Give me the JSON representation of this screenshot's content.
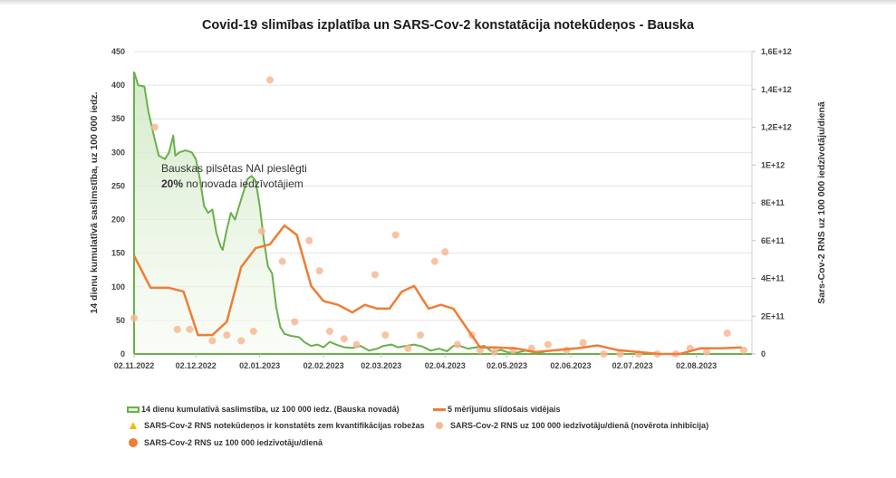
{
  "chart_data": {
    "type": "line",
    "title": "Covid-19 slimības izplatība un SARS-Cov-2 konstatācija notekūdeņos - Bauska",
    "ylabel": "14 dienu kumulatīvā saslimstība, uz 100 000 iedz.",
    "ylabel_right": "Sars-Cov-2 RNS uz 100 000 iedzīvotāju/dienā",
    "xlabel": "",
    "x_unit": "days since 02.11.2022",
    "xlim": [
      0,
      300
    ],
    "ylim": [
      0,
      450
    ],
    "ylim_right": [
      0,
      1600000000000.0
    ],
    "grid": true,
    "x_ticks": [
      {
        "day": 0,
        "label": "02.11.2022"
      },
      {
        "day": 30,
        "label": "02.12.2022"
      },
      {
        "day": 61,
        "label": "02.01.2023"
      },
      {
        "day": 92,
        "label": "02.02.2023"
      },
      {
        "day": 120,
        "label": "02.03.2023"
      },
      {
        "day": 151,
        "label": "02.04.2023"
      },
      {
        "day": 181,
        "label": "02.05.2023"
      },
      {
        "day": 212,
        "label": "02.06.2023"
      },
      {
        "day": 242,
        "label": "02.07.2023"
      },
      {
        "day": 273,
        "label": "02.08.2023"
      }
    ],
    "y_ticks_left": [
      "0",
      "50",
      "100",
      "150",
      "200",
      "250",
      "300",
      "350",
      "400",
      "450"
    ],
    "y_ticks_right": [
      "0",
      "2E+11",
      "4E+11",
      "6E+11",
      "8E+11",
      "1E+12",
      "1,2E+12",
      "1,4E+12",
      "1,6E+12"
    ],
    "annotation": {
      "line1": "Bauskas pilsētas NAI pieslēgti",
      "bold": "20%",
      "line2_rest": " no novada iedzīvotājiem"
    },
    "series": [
      {
        "name": "14 dienu kumulatīvā saslimstība, uz 100 000 iedz. (Bauska novadā)",
        "axis": "left",
        "kind": "area",
        "color": "#6ab04c",
        "points": [
          [
            0,
            420
          ],
          [
            2,
            400
          ],
          [
            5,
            398
          ],
          [
            7,
            360
          ],
          [
            10,
            320
          ],
          [
            12,
            295
          ],
          [
            15,
            290
          ],
          [
            17,
            300
          ],
          [
            19,
            325
          ],
          [
            20,
            295
          ],
          [
            22,
            300
          ],
          [
            25,
            303
          ],
          [
            28,
            300
          ],
          [
            30,
            290
          ],
          [
            32,
            260
          ],
          [
            34,
            220
          ],
          [
            36,
            210
          ],
          [
            38,
            215
          ],
          [
            40,
            180
          ],
          [
            42,
            160
          ],
          [
            43,
            155
          ],
          [
            45,
            185
          ],
          [
            47,
            210
          ],
          [
            49,
            200
          ],
          [
            51,
            220
          ],
          [
            53,
            240
          ],
          [
            55,
            260
          ],
          [
            57,
            265
          ],
          [
            59,
            258
          ],
          [
            61,
            220
          ],
          [
            63,
            170
          ],
          [
            65,
            130
          ],
          [
            67,
            120
          ],
          [
            69,
            70
          ],
          [
            71,
            40
          ],
          [
            73,
            30
          ],
          [
            76,
            27
          ],
          [
            80,
            25
          ],
          [
            83,
            17
          ],
          [
            86,
            12
          ],
          [
            89,
            14
          ],
          [
            92,
            10
          ],
          [
            95,
            18
          ],
          [
            98,
            14
          ],
          [
            102,
            10
          ],
          [
            106,
            9
          ],
          [
            110,
            12
          ],
          [
            114,
            5
          ],
          [
            118,
            8
          ],
          [
            121,
            12
          ],
          [
            125,
            14
          ],
          [
            128,
            10
          ],
          [
            132,
            12
          ],
          [
            136,
            14
          ],
          [
            140,
            11
          ],
          [
            144,
            5
          ],
          [
            148,
            8
          ],
          [
            152,
            4
          ],
          [
            155,
            12
          ],
          [
            158,
            12
          ],
          [
            162,
            8
          ],
          [
            166,
            10
          ],
          [
            170,
            12
          ],
          [
            174,
            3
          ],
          [
            178,
            6
          ],
          [
            182,
            2
          ],
          [
            186,
            2
          ],
          [
            190,
            5
          ],
          [
            195,
            2
          ],
          [
            200,
            0
          ],
          [
            210,
            0
          ],
          [
            220,
            0
          ],
          [
            235,
            0
          ],
          [
            250,
            0
          ],
          [
            265,
            0
          ],
          [
            275,
            0
          ],
          [
            290,
            0
          ],
          [
            300,
            0
          ]
        ]
      },
      {
        "name": "5 mērījumu slīdošais vidējais",
        "axis": "right",
        "kind": "line",
        "color": "#ef7d35",
        "points": [
          [
            0,
            520000000000.0
          ],
          [
            8,
            350000000000.0
          ],
          [
            17,
            350000000000.0
          ],
          [
            24,
            330000000000.0
          ],
          [
            31,
            100000000000.0
          ],
          [
            38,
            100000000000.0
          ],
          [
            45,
            170000000000.0
          ],
          [
            52,
            460000000000.0
          ],
          [
            59,
            560000000000.0
          ],
          [
            66,
            580000000000.0
          ],
          [
            73,
            680000000000.0
          ],
          [
            79,
            630000000000.0
          ],
          [
            86,
            360000000000.0
          ],
          [
            92,
            280000000000.0
          ],
          [
            99,
            260000000000.0
          ],
          [
            106,
            220000000000.0
          ],
          [
            112,
            260000000000.0
          ],
          [
            118,
            240000000000.0
          ],
          [
            124,
            240000000000.0
          ],
          [
            130,
            330000000000.0
          ],
          [
            136,
            360000000000.0
          ],
          [
            143,
            240000000000.0
          ],
          [
            149,
            260000000000.0
          ],
          [
            155,
            240000000000.0
          ],
          [
            168,
            35000000000.0
          ],
          [
            175,
            35000000000.0
          ],
          [
            185,
            30000000000.0
          ],
          [
            195,
            10000000000.0
          ],
          [
            205,
            20000000000.0
          ],
          [
            215,
            30000000000.0
          ],
          [
            225,
            45000000000.0
          ],
          [
            235,
            20000000000.0
          ],
          [
            245,
            10000000000.0
          ],
          [
            255,
            0.0
          ],
          [
            265,
            0.0
          ],
          [
            275,
            30000000000.0
          ],
          [
            285,
            30000000000.0
          ],
          [
            295,
            35000000000.0
          ]
        ]
      },
      {
        "name": "SARS-Cov-2 RNS notekūdeņos ir konstatēts zem kvantifikācijas robežas",
        "axis": "right",
        "kind": "triangle",
        "color": "#f5b800",
        "points": []
      },
      {
        "name": "SARS-Cov-2 RNS uz 100 000 iedzīvotāju/dienā (novērota inhibīcija)",
        "axis": "right",
        "kind": "scatter",
        "color": "#f7b894",
        "points": [
          [
            0,
            190000000000.0
          ],
          [
            10,
            1200000000000.0
          ],
          [
            21,
            130000000000.0
          ],
          [
            27,
            130000000000.0
          ],
          [
            38,
            70000000000.0
          ],
          [
            45,
            100000000000.0
          ],
          [
            52,
            70000000000.0
          ],
          [
            58,
            120000000000.0
          ],
          [
            62,
            650000000000.0
          ],
          [
            66,
            1450000000000.0
          ],
          [
            72,
            490000000000.0
          ],
          [
            78,
            170000000000.0
          ],
          [
            85,
            600000000000.0
          ],
          [
            90,
            440000000000.0
          ],
          [
            95,
            120000000000.0
          ],
          [
            102,
            80000000000.0
          ],
          [
            108,
            50000000000.0
          ],
          [
            117,
            420000000000.0
          ],
          [
            122,
            100000000000.0
          ],
          [
            127,
            630000000000.0
          ],
          [
            133,
            30000000000.0
          ],
          [
            139,
            100000000000.0
          ],
          [
            146,
            490000000000.0
          ],
          [
            151,
            540000000000.0
          ],
          [
            157,
            50000000000.0
          ],
          [
            164,
            100000000000.0
          ],
          [
            168,
            20000000000.0
          ],
          [
            175,
            10000000000.0
          ],
          [
            184,
            20000000000.0
          ],
          [
            193,
            30000000000.0
          ],
          [
            201,
            50000000000.0
          ],
          [
            210,
            20000000000.0
          ],
          [
            218,
            60000000000.0
          ],
          [
            228,
            0.0
          ],
          [
            236,
            0.0
          ],
          [
            245,
            0.0
          ],
          [
            254,
            0.0
          ],
          [
            263,
            0.0
          ],
          [
            270,
            30000000000.0
          ],
          [
            278,
            10000000000.0
          ],
          [
            288,
            110000000000.0
          ],
          [
            296,
            20000000000.0
          ]
        ]
      },
      {
        "name": "SARS-Cov-2 RNS uz 100 000 iedzīvotāju/dienā",
        "axis": "right",
        "kind": "scatter-solid",
        "color": "#ef7d35",
        "points": []
      }
    ],
    "legend": {
      "placement": "bottom",
      "items": [
        "14 dienu kumulatīvā saslimstība, uz 100 000 iedz. (Bauska novadā)",
        "5 mērījumu slīdošais vidējais",
        "SARS-Cov-2 RNS notekūdeņos ir konstatēts zem kvantifikācijas robežas",
        "SARS-Cov-2 RNS uz 100 000 iedzīvotāju/dienā (novērota inhibīcija)",
        "SARS-Cov-2 RNS uz 100 000 iedzīvotāju/dienā"
      ]
    }
  }
}
